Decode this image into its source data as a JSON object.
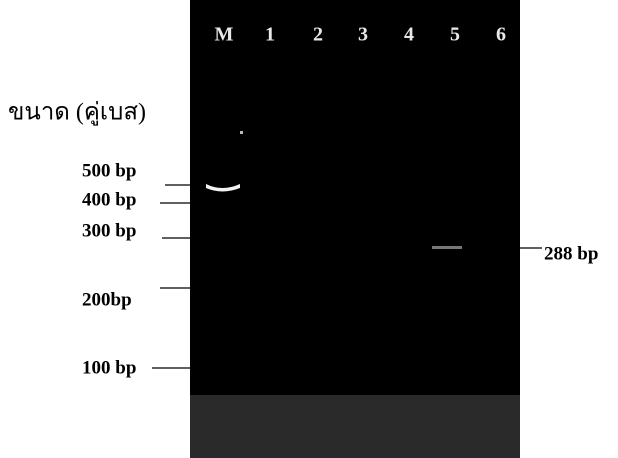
{
  "lanes": [
    "M",
    "1",
    "2",
    "3",
    "4",
    "5",
    "6"
  ],
  "size_title": "ขนาด (คู่เบส)",
  "markers": [
    "500 bp",
    "400 bp",
    "300 bp",
    "200bp",
    "100 bp"
  ],
  "product_label": "288 bp"
}
